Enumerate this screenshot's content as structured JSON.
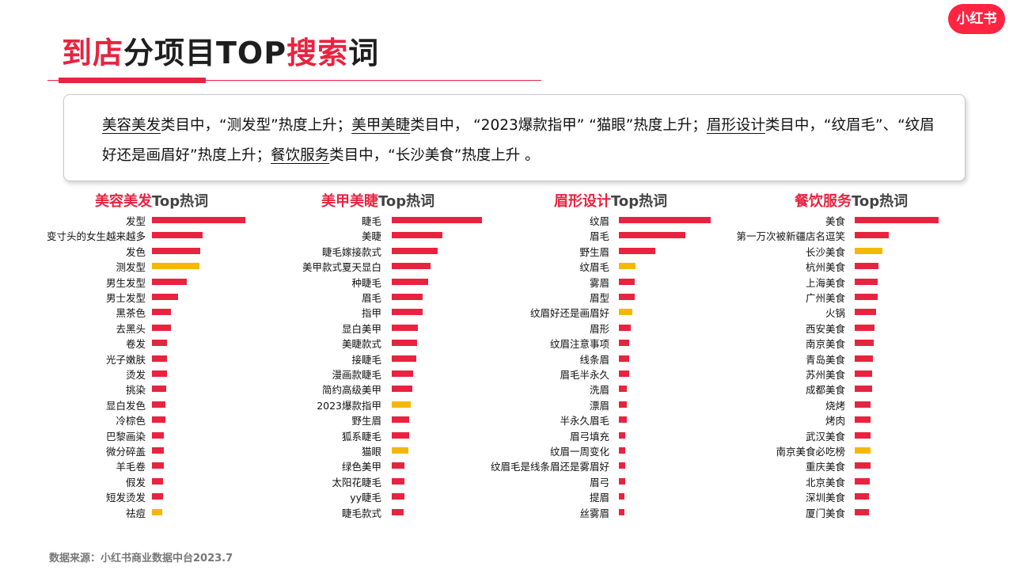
{
  "title": {
    "part1": "到店",
    "part2": "分项目TOP",
    "part3": "搜索",
    "part4": "词"
  },
  "logo": "小红书",
  "summary": {
    "s1": "美容美发",
    "s2": "类目中，“测发型”热度上升；",
    "s3": "美甲美睫",
    "s4": "类目中， “2023爆款指甲” “猫眼”热度上升；",
    "s5": "眉形设计",
    "s6": "类目中，“纹眉毛”、“纹眉好还是画眉好”热度上升；",
    "s7": "餐饮服务",
    "s8": "类目中，“长沙美食”热度上升 。"
  },
  "colors": {
    "primary": "#e8233f",
    "highlight": "#f5b800"
  },
  "source": "数据来源：小红书商业数据中台2023.7",
  "chart_data": [
    {
      "type": "bar",
      "orientation": "horizontal",
      "title_colored": "美容美发",
      "title_suffix": "Top热词",
      "categories": [
        "发型",
        "变寸头的女生越来越多",
        "发色",
        "测发型",
        "男生发型",
        "男士发型",
        "黑茶色",
        "去黑头",
        "卷发",
        "光子嫩肤",
        "烫发",
        "挑染",
        "显白发色",
        "冷棕色",
        "巴黎画染",
        "微分碎盖",
        "羊毛卷",
        "假发",
        "短发烫发",
        "祛痘"
      ],
      "values": [
        100,
        54,
        52,
        51,
        37,
        28,
        20,
        20,
        16,
        16,
        16,
        15,
        14,
        14,
        13,
        13,
        13,
        12,
        12,
        11
      ],
      "highlight": [
        "测发型",
        "祛痘"
      ]
    },
    {
      "type": "bar",
      "orientation": "horizontal",
      "title_colored": "美甲美睫",
      "title_suffix": "Top热词",
      "categories": [
        "睫毛",
        "美睫",
        "睫毛嫁接款式",
        "美甲款式夏天显白",
        "种睫毛",
        "眉毛",
        "指甲",
        "显白美甲",
        "美睫款式",
        "接睫毛",
        "漫画款睫毛",
        "简约高级美甲",
        "2023爆款指甲",
        "野生眉",
        "狐系睫毛",
        "猫眼",
        "绿色美甲",
        "太阳花睫毛",
        "yy睫毛",
        "睫毛款式"
      ],
      "values": [
        100,
        56,
        51,
        43,
        40,
        34,
        34,
        29,
        28,
        27,
        24,
        23,
        21,
        19,
        19,
        18,
        14,
        14,
        14,
        13
      ],
      "highlight": [
        "2023爆款指甲",
        "猫眼"
      ]
    },
    {
      "type": "bar",
      "orientation": "horizontal",
      "title_colored": "眉形设计",
      "title_suffix": "Top热词",
      "categories": [
        "纹眉",
        "眉毛",
        "野生眉",
        "纹眉毛",
        "雾眉",
        "眉型",
        "纹眉好还是画眉好",
        "眉形",
        "纹眉注意事项",
        "线条眉",
        "眉毛半永久",
        "洗眉",
        "漂眉",
        "半永久眉毛",
        "眉弓填充",
        "纹眉一周变化",
        "纹眉毛是线条眉还是雾眉好",
        "眉弓",
        "提眉",
        "丝雾眉"
      ],
      "values": [
        100,
        72,
        40,
        18,
        17,
        17,
        15,
        13,
        11,
        11,
        11,
        9,
        9,
        9,
        7,
        7,
        7,
        7,
        6,
        6
      ],
      "highlight": [
        "纹眉毛",
        "纹眉好还是画眉好"
      ]
    },
    {
      "type": "bar",
      "orientation": "horizontal",
      "title_colored": "餐饮服务",
      "title_suffix": "Top热词",
      "categories": [
        "美食",
        "第一万次被新疆店名逗笑",
        "长沙美食",
        "杭州美食",
        "上海美食",
        "广州美食",
        "火锅",
        "西安美食",
        "南京美食",
        "青岛美食",
        "苏州美食",
        "成都美食",
        "烧烤",
        "烤肉",
        "武汉美食",
        "南京美食必吃榜",
        "重庆美食",
        "北京美食",
        "深圳美食",
        "厦门美食"
      ],
      "values": [
        100,
        41,
        33,
        28,
        27,
        27,
        25,
        24,
        23,
        22,
        21,
        21,
        19,
        19,
        19,
        19,
        19,
        18,
        17,
        17
      ],
      "highlight": [
        "长沙美食",
        "南京美食必吃榜"
      ]
    }
  ]
}
